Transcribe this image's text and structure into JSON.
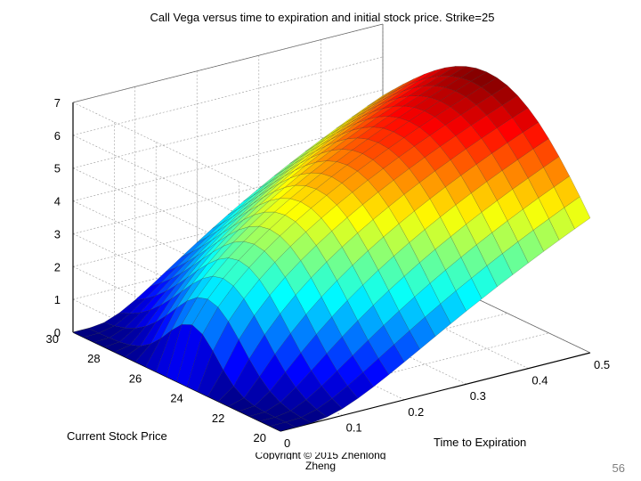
{
  "slide": {
    "copyright": "Copyright © 2015 Zhenlong Zheng",
    "copyright_line1": "Copyright © 2015 Zhenlong",
    "copyright_line2": "Zheng",
    "page_number": "56"
  },
  "chart_data": {
    "type": "surface",
    "title": "Call Vega versus time to expiration and initial stock price. Strike=25",
    "xlabel": "Time to Expiration",
    "ylabel": "Current Stock Price",
    "zlabel": "",
    "strike": 25,
    "x_ticks": [
      "0",
      "0.1",
      "0.2",
      "0.3",
      "0.4",
      "0.5"
    ],
    "y_ticks": [
      "20",
      "22",
      "24",
      "26",
      "28",
      "30"
    ],
    "z_ticks": [
      "0",
      "1",
      "2",
      "3",
      "4",
      "5",
      "6",
      "7"
    ],
    "xlim": [
      0,
      0.5
    ],
    "ylim": [
      20,
      30
    ],
    "zlim": [
      0,
      7
    ],
    "grid": true,
    "colormap": "jet",
    "time_values": [
      0,
      0.025,
      0.05,
      0.075,
      0.1,
      0.125,
      0.15,
      0.175,
      0.2,
      0.225,
      0.25,
      0.275,
      0.3,
      0.325,
      0.35,
      0.375,
      0.4,
      0.425,
      0.45,
      0.475,
      0.5
    ],
    "price_values": [
      20,
      20.5,
      21,
      21.5,
      22,
      22.5,
      23,
      23.5,
      24,
      24.5,
      25,
      25.5,
      26,
      26.5,
      27,
      27.5,
      28,
      28.5,
      29,
      29.5,
      30
    ],
    "vega_peak": 7.05
  }
}
